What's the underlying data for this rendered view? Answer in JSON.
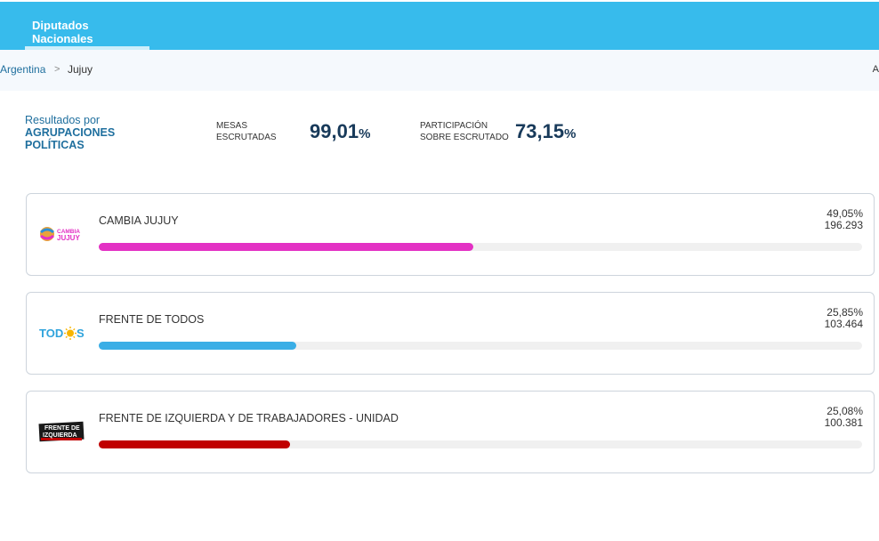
{
  "header": {
    "tab_label": "Diputados Nacionales"
  },
  "breadcrumb": {
    "root": "Argentina",
    "separator": ">",
    "current": "Jujuy",
    "edge_text": "A"
  },
  "summary": {
    "label_line1": "Resultados por",
    "label_line2": "AGRUPACIONES",
    "label_line3": "POLÍTICAS",
    "mesas": {
      "label_line1": "MESAS",
      "label_line2": "ESCRUTADAS",
      "value": "99,01",
      "unit": "%"
    },
    "participacion": {
      "label_line1": "PARTICIPACIÓN",
      "label_line2": "SOBRE ESCRUTADO",
      "value": "73,15",
      "unit": "%"
    }
  },
  "parties": [
    {
      "name": "CAMBIA JUJUY",
      "percent": "49,05%",
      "votes": "196.293",
      "share": 49.05,
      "color": "#e331c4",
      "logo_icon": "cambia-jujuy-logo-icon",
      "logo_text": [
        "CAMBIA",
        "JUJUY"
      ]
    },
    {
      "name": "FRENTE DE TODOS",
      "percent": "25,85%",
      "votes": "103.464",
      "share": 25.85,
      "color": "#3aaee6",
      "logo_icon": "frente-de-todos-logo-icon",
      "logo_text": [
        "TOD",
        "S"
      ]
    },
    {
      "name": "FRENTE DE IZQUIERDA Y DE TRABAJADORES - UNIDAD",
      "percent": "25,08%",
      "votes": "100.381",
      "share": 25.08,
      "color": "#c00000",
      "logo_icon": "frente-de-izquierda-logo-icon",
      "logo_text": [
        "FRENTE DE",
        "IZQUIERDA"
      ]
    }
  ]
}
